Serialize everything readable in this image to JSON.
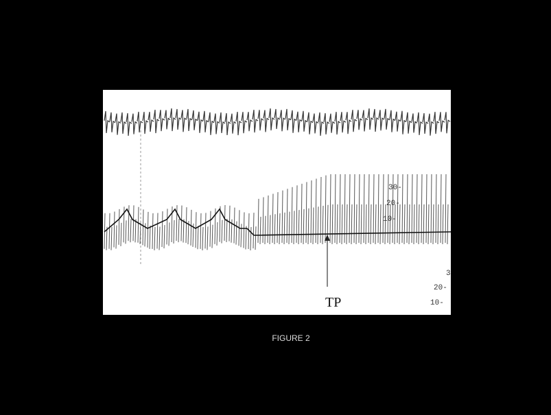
{
  "figure": {
    "caption": "FIGURE 2",
    "annotation": "TP",
    "scale_labels_upper": [
      "30-",
      "20-",
      "10-"
    ],
    "scale_labels_lower": [
      "3",
      "20-",
      "10-"
    ]
  }
}
